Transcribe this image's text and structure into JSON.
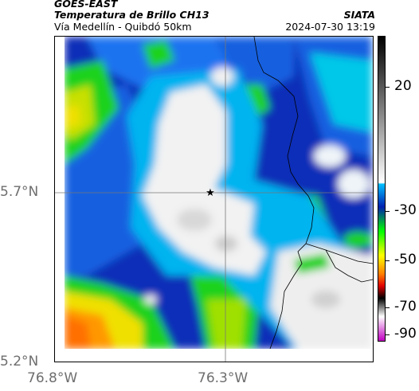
{
  "header": {
    "satellite": "GOES-EAST",
    "product": "Temperatura de Brillo CH13",
    "route": "Vía Medellín - Quibdó 50km",
    "agency": "SIATA",
    "datetime": "2024-07-30 13:19"
  },
  "axes": {
    "lat_labels": [
      "5.7°N",
      "5.2°N"
    ],
    "lon_labels": [
      "76.8°W",
      "76.3°W"
    ]
  },
  "colorbar": {
    "ticks": [
      "20",
      "-30",
      "-50",
      "-70",
      "-90"
    ],
    "colors_top_to_bottom": [
      "#000000",
      "#ffffff",
      "#00bfff",
      "#0000b0",
      "#00ff00",
      "#ffff00",
      "#ff0000",
      "#000000",
      "#ffffff",
      "#ff00ff"
    ]
  },
  "marker": {
    "symbol": "★",
    "lat": 5.7,
    "lon": -76.33
  }
}
